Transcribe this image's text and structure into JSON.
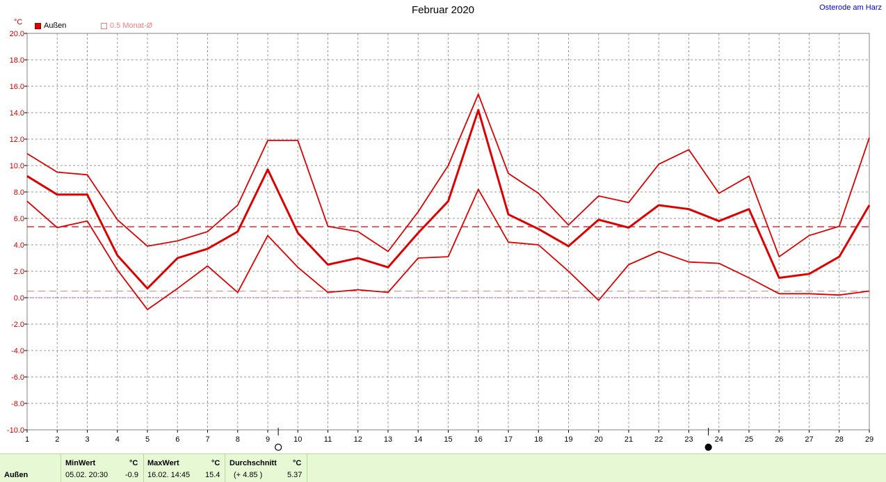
{
  "header": {
    "title": "Februar 2020",
    "location": "Osterode am Harz",
    "unit": "°C"
  },
  "legend": {
    "series_label": "Außen",
    "mean_label": "0.5 Monat-Ø"
  },
  "colors": {
    "series": "#dd0000",
    "grid": "#999999",
    "mean_line": "#dd0000",
    "mean_light": "#f08080",
    "zero_line": "#a040c0",
    "footer_bg": "#e6f8d4"
  },
  "chart_data": {
    "type": "line",
    "title": "Februar 2020",
    "x": [
      1,
      2,
      3,
      4,
      5,
      6,
      7,
      8,
      9,
      10,
      11,
      12,
      13,
      14,
      15,
      16,
      17,
      18,
      19,
      20,
      21,
      22,
      23,
      24,
      25,
      26,
      27,
      28,
      29
    ],
    "series": [
      {
        "name": "Außen",
        "role": "max",
        "values": [
          10.9,
          9.5,
          9.3,
          5.9,
          3.9,
          4.3,
          5.0,
          7.0,
          11.9,
          11.9,
          5.4,
          5.0,
          3.5,
          6.5,
          10.0,
          15.4,
          9.4,
          7.9,
          5.5,
          7.7,
          7.2,
          10.1,
          11.2,
          7.9,
          9.2,
          3.1,
          4.7,
          5.4,
          12.1
        ]
      },
      {
        "name": "Außen",
        "role": "avg",
        "values": [
          9.2,
          7.8,
          7.8,
          3.2,
          0.7,
          3.0,
          3.7,
          5.0,
          9.7,
          4.9,
          2.5,
          3.0,
          2.3,
          4.9,
          7.3,
          14.2,
          6.3,
          5.2,
          3.9,
          5.9,
          5.3,
          7.0,
          6.7,
          5.8,
          6.7,
          1.5,
          1.8,
          3.1,
          7.0
        ]
      },
      {
        "name": "Außen",
        "role": "min",
        "values": [
          7.3,
          5.3,
          5.8,
          2.1,
          -0.9,
          0.7,
          2.4,
          0.4,
          4.7,
          2.3,
          0.4,
          0.6,
          0.4,
          3.0,
          3.1,
          8.2,
          4.2,
          4.0,
          2.0,
          -0.2,
          2.5,
          3.5,
          2.7,
          2.6,
          1.5,
          0.3,
          0.3,
          0.2,
          0.5
        ]
      }
    ],
    "mean_line": 5.37,
    "half_mean_line": 0.5,
    "ylim": [
      -10,
      20
    ],
    "yticks": [
      "20.0",
      "18.0",
      "16.0",
      "14.0",
      "12.0",
      "10.0",
      "8.0",
      "6.0",
      "4.0",
      "2.0",
      "0.0",
      "-2.0",
      "-4.0",
      "-6.0",
      "-8.0",
      "-10.0"
    ],
    "xticks": [
      "1",
      "2",
      "3",
      "4",
      "5",
      "6",
      "7",
      "8",
      "9",
      "10",
      "11",
      "12",
      "13",
      "14",
      "15",
      "16",
      "17",
      "18",
      "19",
      "20",
      "21",
      "22",
      "23",
      "24",
      "25",
      "26",
      "27",
      "28",
      "29"
    ],
    "moon_phases": [
      {
        "x": 9.35,
        "phase": "full"
      },
      {
        "x": 23.65,
        "phase": "new"
      }
    ],
    "grid": true,
    "legend_position": "top-left"
  },
  "footer": {
    "row_label": "Außen",
    "min": {
      "label": "MinWert",
      "unit": "°C",
      "time": "05.02.  20:30",
      "value": "-0.9"
    },
    "max": {
      "label": "MaxWert",
      "unit": "°C",
      "time": "16.02.  14:45",
      "value": "15.4"
    },
    "avg": {
      "label": "Durchschnitt",
      "unit": "°C",
      "delta": "(+ 4.85 )",
      "value": "5.37"
    }
  }
}
